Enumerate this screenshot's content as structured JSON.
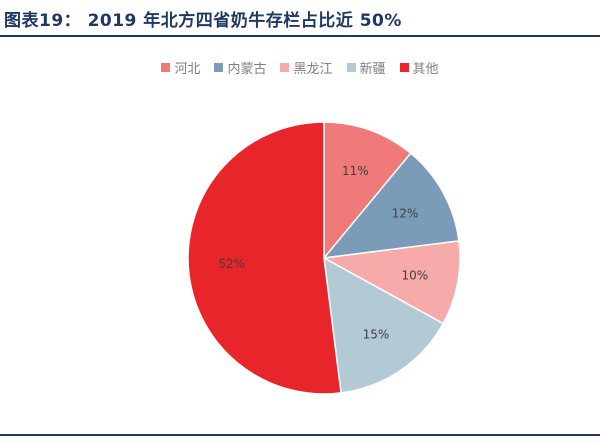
{
  "figure": {
    "title": "图表19：  2019 年北方四省奶牛存栏占比近 50%"
  },
  "chart_data": {
    "type": "pie",
    "categories": [
      "河北",
      "内蒙古",
      "黑龙江",
      "新疆",
      "其他"
    ],
    "values": [
      11,
      12,
      10,
      15,
      52
    ],
    "labels": [
      "11%",
      "12%",
      "10%",
      "15%",
      "52%"
    ],
    "colors": [
      "#f07a7a",
      "#7b9cb8",
      "#f7aaaa",
      "#b4c9d6",
      "#e8252a"
    ],
    "legend_position": "top"
  }
}
